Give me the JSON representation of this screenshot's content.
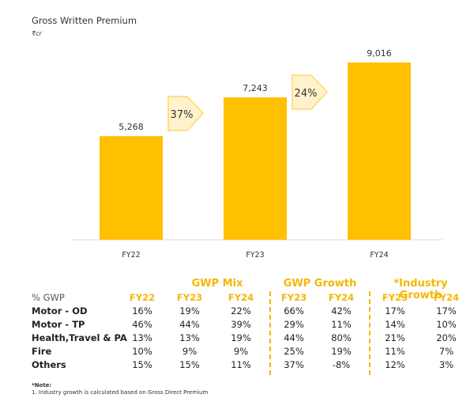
{
  "chart_data": {
    "type": "bar",
    "title": "Gross Written Premium",
    "unit": "₹cr",
    "categories": [
      "FY22",
      "FY23",
      "FY24"
    ],
    "values": [
      5268,
      7243,
      9016
    ],
    "data_labels": [
      "5,268",
      "7,243",
      "9,016"
    ],
    "growth_labels": [
      "37%",
      "24%"
    ],
    "bar_color": "#ffc000",
    "arrow_fill": "#fff2cc",
    "arrow_stroke": "#ffd966",
    "grid": false
  },
  "table": {
    "groups": [
      "GWP Mix",
      "GWP Growth",
      "*Industry Growth"
    ],
    "header_label": "% GWP",
    "columns": [
      "FY22",
      "FY23",
      "FY24",
      "FY23",
      "FY24",
      "FY23",
      "FY24"
    ],
    "rows": [
      {
        "label": "Motor - OD",
        "values": [
          "16%",
          "19%",
          "22%",
          "66%",
          "42%",
          "17%",
          "17%"
        ]
      },
      {
        "label": "Motor - TP",
        "values": [
          "46%",
          "44%",
          "39%",
          "29%",
          "11%",
          "14%",
          "10%"
        ]
      },
      {
        "label": "Health,Travel & PA",
        "values": [
          "13%",
          "13%",
          "19%",
          "44%",
          "80%",
          "21%",
          "20%"
        ]
      },
      {
        "label": "Fire",
        "values": [
          "10%",
          "9%",
          "9%",
          "25%",
          "19%",
          "11%",
          "7%"
        ]
      },
      {
        "label": "Others",
        "values": [
          "15%",
          "15%",
          "11%",
          "37%",
          "-8%",
          "12%",
          "3%"
        ]
      }
    ],
    "accent": "#f5b700"
  },
  "notes": {
    "heading": "*Note:",
    "line1": "1. Industry growth is calculated based on Gross Direct Premium"
  }
}
